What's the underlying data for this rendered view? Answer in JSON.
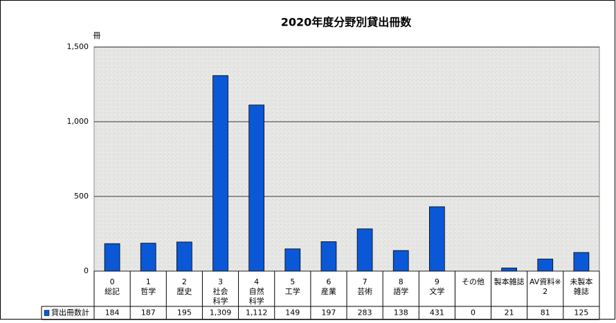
{
  "chart_data": {
    "type": "bar",
    "title": "2020年度分野別貸出冊数",
    "y_label": "冊",
    "categories": [
      [
        "0",
        "総記"
      ],
      [
        "1",
        "哲学"
      ],
      [
        "2",
        "歴史"
      ],
      [
        "3",
        "社会",
        "科学"
      ],
      [
        "4",
        "自然",
        "科学"
      ],
      [
        "5",
        "工学"
      ],
      [
        "6",
        "産業"
      ],
      [
        "7",
        "芸術"
      ],
      [
        "8",
        "語学"
      ],
      [
        "9",
        "文学"
      ],
      [
        "その他"
      ],
      [
        "製本雑誌"
      ],
      [
        "AV資料※",
        "2"
      ],
      [
        "未製本",
        "雑誌"
      ]
    ],
    "series": [
      {
        "name": "貸出冊数計",
        "color": "#0a58d6",
        "values": [
          184,
          187,
          195,
          1309,
          1112,
          149,
          197,
          283,
          138,
          431,
          0,
          21,
          81,
          125
        ],
        "value_labels": [
          "184",
          "187",
          "195",
          "1,309",
          "1,112",
          "149",
          "197",
          "283",
          "138",
          "431",
          "0",
          "21",
          "81",
          "125"
        ]
      }
    ],
    "ylim": [
      0,
      1500
    ],
    "yticks": [
      0,
      500,
      {
        "value": 1000,
        "label": "1,000"
      },
      {
        "value": 1500,
        "label": "1,500"
      }
    ],
    "grid": true
  }
}
